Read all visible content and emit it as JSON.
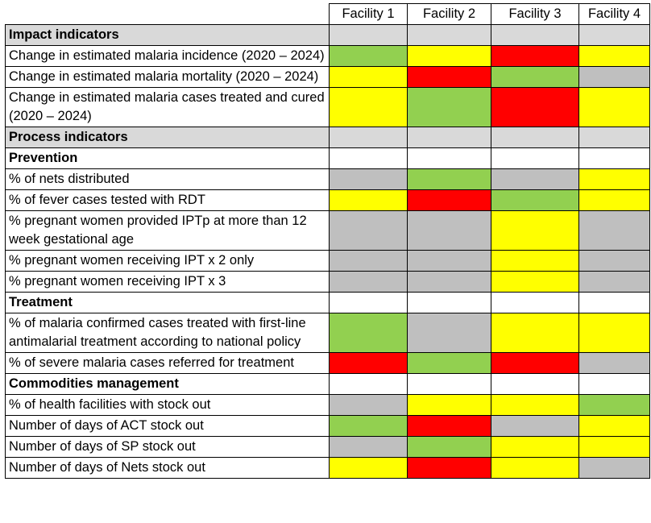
{
  "columns": [
    "Facility 1",
    "Facility 2",
    "Facility 3",
    "Facility 4"
  ],
  "colors": {
    "green": "#92d050",
    "yellow": "#ffff00",
    "red": "#ff0000",
    "grey": "#bfbfbf",
    "section": "#d9d9d9",
    "white": "#ffffff"
  },
  "rows": [
    {
      "type": "section",
      "label": "Impact indicators"
    },
    {
      "type": "data",
      "label": "Change in estimated malaria incidence (2020 – 2024)",
      "cells": [
        "green",
        "yellow",
        "red",
        "yellow"
      ]
    },
    {
      "type": "data",
      "label": "Change in estimated malaria mortality (2020 – 2024)",
      "cells": [
        "yellow",
        "red",
        "green",
        "grey"
      ]
    },
    {
      "type": "data",
      "label": "Change in estimated malaria cases treated and cured (2020 – 2024)",
      "cells": [
        "yellow",
        "green",
        "red",
        "yellow"
      ]
    },
    {
      "type": "section",
      "label": "Process indicators"
    },
    {
      "type": "sub",
      "label": "Prevention"
    },
    {
      "type": "data",
      "label": "% of nets distributed",
      "cells": [
        "grey",
        "green",
        "grey",
        "yellow"
      ]
    },
    {
      "type": "data",
      "label": "% of fever cases tested with RDT",
      "cells": [
        "yellow",
        "red",
        "green",
        "yellow"
      ]
    },
    {
      "type": "data",
      "label": "% pregnant women provided IPTp at more than 12 week gestational age",
      "cells": [
        "grey",
        "grey",
        "yellow",
        "grey"
      ]
    },
    {
      "type": "data",
      "label": "% pregnant women receiving IPT x 2 only",
      "cells": [
        "grey",
        "grey",
        "yellow",
        "grey"
      ]
    },
    {
      "type": "data",
      "label": "% pregnant women receiving IPT x 3",
      "cells": [
        "grey",
        "grey",
        "yellow",
        "grey"
      ]
    },
    {
      "type": "sub",
      "label": "Treatment"
    },
    {
      "type": "data",
      "label": "% of malaria confirmed cases treated with first-line antimalarial treatment according to national policy",
      "cells": [
        "green",
        "grey",
        "yellow",
        "yellow"
      ]
    },
    {
      "type": "data",
      "label": "% of severe malaria cases referred for treatment",
      "cells": [
        "red",
        "green",
        "red",
        "grey"
      ]
    },
    {
      "type": "sub",
      "label": "Commodities management"
    },
    {
      "type": "data",
      "label": "% of health facilities with stock out",
      "cells": [
        "grey",
        "yellow",
        "yellow",
        "green"
      ]
    },
    {
      "type": "data",
      "label": "Number of days of ACT stock out",
      "cells": [
        "green",
        "red",
        "grey",
        "yellow"
      ]
    },
    {
      "type": "data",
      "label": "Number of days of SP stock out",
      "cells": [
        "grey",
        "green",
        "yellow",
        "yellow"
      ]
    },
    {
      "type": "data",
      "label": "Number of days of Nets stock out",
      "cells": [
        "yellow",
        "red",
        "yellow",
        "grey"
      ]
    }
  ]
}
